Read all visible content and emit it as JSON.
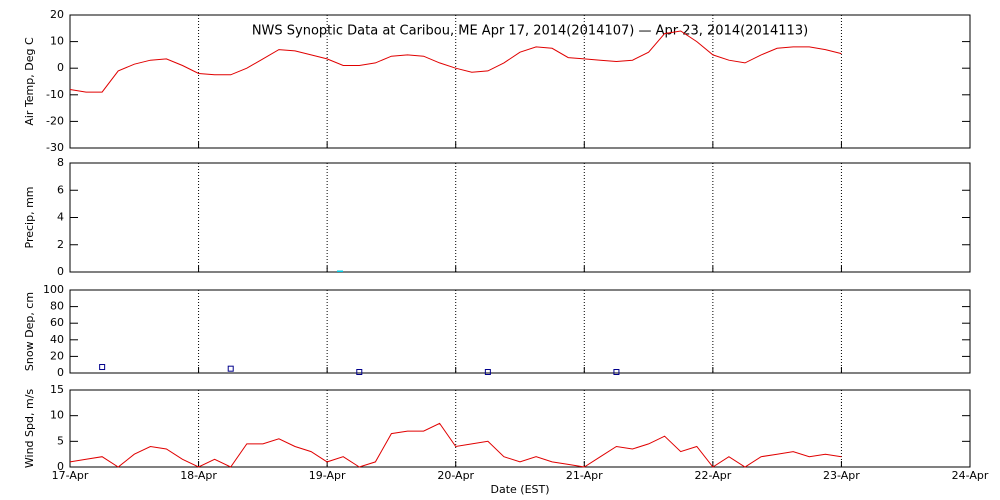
{
  "chart_data": [
    {
      "type": "line",
      "title": "NWS Synoptic Data at Caribou, ME   Apr 17, 2014(2014107) — Apr 23, 2014(2014113)",
      "y_label": "Air Temp, Deg C",
      "x": [
        0,
        0.125,
        0.25,
        0.375,
        0.5,
        0.625,
        0.75,
        0.875,
        1,
        1.125,
        1.25,
        1.375,
        1.5,
        1.625,
        1.75,
        1.875,
        2,
        2.125,
        2.25,
        2.375,
        2.5,
        2.625,
        2.75,
        2.875,
        3,
        3.125,
        3.25,
        3.375,
        3.5,
        3.625,
        3.75,
        3.875,
        4,
        4.125,
        4.25,
        4.375,
        4.5,
        4.625,
        4.75,
        4.875,
        5,
        5.125,
        5.25,
        5.375,
        5.5,
        5.625,
        5.75,
        5.875,
        6
      ],
      "series": [
        {
          "color": "#e00000",
          "values": [
            -8,
            -9,
            -9,
            -1,
            1.5,
            3,
            3.5,
            1,
            -2,
            -2.5,
            -2.5,
            0,
            3.5,
            7,
            6.5,
            5,
            3.5,
            1,
            1,
            2,
            4.5,
            5,
            4.5,
            2,
            0,
            -1.5,
            -1,
            2,
            6,
            8,
            7.5,
            4,
            3.5,
            3,
            2.5,
            3,
            6,
            13,
            14,
            10,
            5,
            3,
            2,
            5,
            7.5,
            8,
            8,
            7,
            5.5
          ]
        }
      ],
      "xlim": [
        0,
        7
      ],
      "xticks": [
        0,
        1,
        2,
        3,
        4,
        5,
        6,
        7
      ],
      "ylim": [
        -30,
        20
      ],
      "yticks": [
        -30,
        -20,
        -10,
        0,
        10,
        20
      ],
      "grid": true
    },
    {
      "type": "bar",
      "y_label": "Precip, mm",
      "x": [
        2.1
      ],
      "series": [
        {
          "color": "#00c8e0",
          "values": [
            0
          ]
        }
      ],
      "xlim": [
        0,
        7
      ],
      "xticks": [
        0,
        1,
        2,
        3,
        4,
        5,
        6,
        7
      ],
      "ylim": [
        0,
        8
      ],
      "yticks": [
        0,
        2,
        4,
        6,
        8
      ],
      "grid": true
    },
    {
      "type": "scatter",
      "y_label": "Snow Dep, cm",
      "marker": "square",
      "x": [
        0.25,
        1.25,
        2.25,
        3.25,
        4.25
      ],
      "series": [
        {
          "color": "#00008b",
          "values": [
            6,
            4,
            0,
            0,
            0
          ]
        }
      ],
      "xlim": [
        0,
        7
      ],
      "xticks": [
        0,
        1,
        2,
        3,
        4,
        5,
        6,
        7
      ],
      "ylim": [
        0,
        100
      ],
      "yticks": [
        0,
        20,
        40,
        60,
        80,
        100
      ],
      "grid": true
    },
    {
      "type": "line",
      "y_label": "Wind Spd, m/s",
      "x_label": "Date (EST)",
      "x": [
        0,
        0.125,
        0.25,
        0.375,
        0.5,
        0.625,
        0.75,
        0.875,
        1,
        1.125,
        1.25,
        1.375,
        1.5,
        1.625,
        1.75,
        1.875,
        2,
        2.125,
        2.25,
        2.375,
        2.5,
        2.625,
        2.75,
        2.875,
        3,
        3.125,
        3.25,
        3.375,
        3.5,
        3.625,
        3.75,
        3.875,
        4,
        4.125,
        4.25,
        4.375,
        4.5,
        4.625,
        4.75,
        4.875,
        5,
        5.125,
        5.25,
        5.375,
        5.5,
        5.625,
        5.75,
        5.875,
        6
      ],
      "series": [
        {
          "color": "#e00000",
          "values": [
            1,
            1.5,
            2,
            0,
            2.5,
            4,
            3.5,
            1.5,
            0,
            1.5,
            0,
            4.5,
            4.5,
            5.5,
            4,
            3,
            1,
            2,
            0,
            1,
            6.5,
            7,
            7,
            8.5,
            4,
            4.5,
            5,
            2,
            1,
            2,
            1,
            0.5,
            0,
            2,
            4,
            3.5,
            4.5,
            6,
            3,
            4,
            0,
            2,
            0,
            2,
            2.5,
            3,
            2,
            2.5,
            2
          ]
        }
      ],
      "xlim": [
        0,
        7
      ],
      "xticks": [
        {
          "value": 0,
          "label": "17-Apr"
        },
        {
          "value": 1,
          "label": "18-Apr"
        },
        {
          "value": 2,
          "label": "19-Apr"
        },
        {
          "value": 3,
          "label": "20-Apr"
        },
        {
          "value": 4,
          "label": "21-Apr"
        },
        {
          "value": 5,
          "label": "22-Apr"
        },
        {
          "value": 6,
          "label": "23-Apr"
        },
        {
          "value": 7,
          "label": "24-Apr"
        }
      ],
      "ylim": [
        0,
        15
      ],
      "yticks": [
        0,
        5,
        10,
        15
      ],
      "grid": true
    }
  ]
}
